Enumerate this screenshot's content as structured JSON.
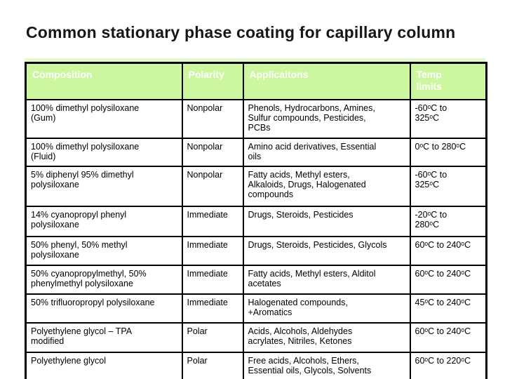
{
  "slide": {
    "title": "Common stationary phase coating for capillary column"
  },
  "table": {
    "headers": {
      "composition": "Composition",
      "polarity": "Polarity",
      "applications": "Applicaitons",
      "temp": "Temp\nlimits"
    },
    "rows": [
      {
        "composition": "100% dimethyl polysiloxane\n(Gum)",
        "polarity": "Nonpolar",
        "applications": "Phenols, Hydrocarbons, Amines,\nSulfur compounds, Pesticides,\nPCBs",
        "temp": "-60ᵒC to\n325ᵒC"
      },
      {
        "composition": "100% dimethyl polysiloxane\n(Fluid)",
        "polarity": "Nonpolar",
        "applications": "Amino acid derivatives, Essential\noils",
        "temp": "0ᵒC to 280ᵒC"
      },
      {
        "composition": "5% diphenyl 95% dimethyl\npolysiloxane",
        "polarity": "Nonpolar",
        "applications": "Fatty acids, Methyl esters,\nAlkaloids, Drugs, Halogenated\ncompounds",
        "temp": "-60ᵒC to\n325ᵒC"
      },
      {
        "composition": "14% cyanopropyl phenyl\npolysiloxane",
        "polarity": "Immediate",
        "applications": "Drugs, Steroids, Pesticides",
        "temp": "-20ᵒC to\n280ᵒC"
      },
      {
        "composition": "50% phenyl, 50% methyl\npolysiloxane",
        "polarity": "Immediate",
        "applications": "Drugs, Steroids, Pesticides, Glycols",
        "temp": "60ᵒC to 240ᵒC"
      },
      {
        "composition": "50% cyanopropylmethyl, 50%\nphenylmethyl polysiloxane",
        "polarity": "Immediate",
        "applications": "Fatty acids, Methyl esters, Alditol\nacetates",
        "temp": "60ᵒC to 240ᵒC"
      },
      {
        "composition": "50% trifluoropropyl polysiloxane",
        "polarity": "Immediate",
        "applications": "Halogenated compounds,\n+Aromatics",
        "temp": "45ᵒC to 240ᵒC"
      },
      {
        "composition": "Polyethylene glycol – TPA\nmodified",
        "polarity": "Polar",
        "applications": "Acids, Alcohols, Aldehydes\nacrylates, Nitriles, Ketones",
        "temp": "60ᵒC to 240ᵒC"
      },
      {
        "composition": "Polyethylene glycol",
        "polarity": "Polar",
        "applications": "Free acids, Alcohols, Ethers,\nEssential oils, Glycols, Solvents",
        "temp": "60ᵒC to 220ᵒC"
      }
    ]
  },
  "colors": {
    "header_bg": "#cdf79e",
    "header_text": "#ffffff",
    "table_top_strip": "#e3f8cd",
    "border": "#000000",
    "title_text": "#161616"
  }
}
